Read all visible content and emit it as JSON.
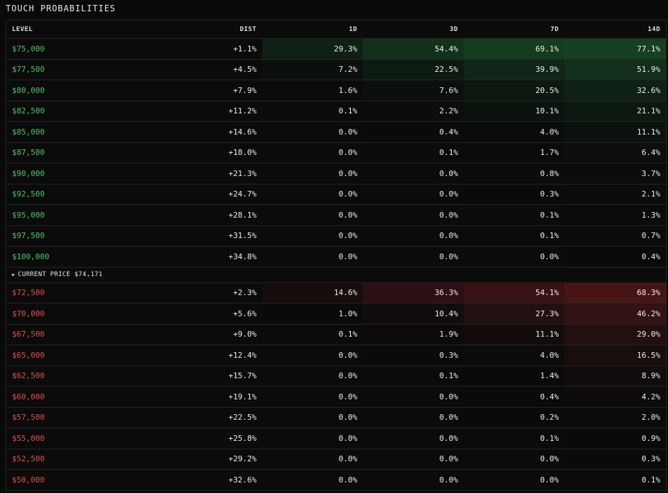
{
  "title": "TOUCH PROBABILITIES",
  "headers": {
    "level": "LEVEL",
    "dist": "DIST",
    "h1": "1D",
    "h3": "3D",
    "h7": "7D",
    "h14": "14D"
  },
  "current_price_label": "CURRENT PRICE $74,171",
  "colors": {
    "up_text": "#4fc767",
    "down_text": "#e0524c",
    "up_heat": "#1a5a2c",
    "down_heat": "#6a1c1e"
  },
  "upper_rows": [
    {
      "level": "$75,000",
      "dist": "+1.1%",
      "d1": "29.3%",
      "d3": "54.4%",
      "d7": "69.1%",
      "d14": "77.1%"
    },
    {
      "level": "$77,500",
      "dist": "+4.5%",
      "d1": "7.2%",
      "d3": "22.5%",
      "d7": "39.9%",
      "d14": "51.9%"
    },
    {
      "level": "$80,000",
      "dist": "+7.9%",
      "d1": "1.6%",
      "d3": "7.6%",
      "d7": "20.5%",
      "d14": "32.6%"
    },
    {
      "level": "$82,500",
      "dist": "+11.2%",
      "d1": "0.1%",
      "d3": "2.2%",
      "d7": "10.1%",
      "d14": "21.1%"
    },
    {
      "level": "$85,000",
      "dist": "+14.6%",
      "d1": "0.0%",
      "d3": "0.4%",
      "d7": "4.0%",
      "d14": "11.1%"
    },
    {
      "level": "$87,500",
      "dist": "+18.0%",
      "d1": "0.0%",
      "d3": "0.1%",
      "d7": "1.7%",
      "d14": "6.4%"
    },
    {
      "level": "$90,000",
      "dist": "+21.3%",
      "d1": "0.0%",
      "d3": "0.0%",
      "d7": "0.8%",
      "d14": "3.7%"
    },
    {
      "level": "$92,500",
      "dist": "+24.7%",
      "d1": "0.0%",
      "d3": "0.0%",
      "d7": "0.3%",
      "d14": "2.1%"
    },
    {
      "level": "$95,000",
      "dist": "+28.1%",
      "d1": "0.0%",
      "d3": "0.0%",
      "d7": "0.1%",
      "d14": "1.3%"
    },
    {
      "level": "$97,500",
      "dist": "+31.5%",
      "d1": "0.0%",
      "d3": "0.0%",
      "d7": "0.1%",
      "d14": "0.7%"
    },
    {
      "level": "$100,000",
      "dist": "+34.8%",
      "d1": "0.0%",
      "d3": "0.0%",
      "d7": "0.0%",
      "d14": "0.4%"
    }
  ],
  "lower_rows": [
    {
      "level": "$72,500",
      "dist": "+2.3%",
      "d1": "14.6%",
      "d3": "36.3%",
      "d7": "54.1%",
      "d14": "68.3%"
    },
    {
      "level": "$70,000",
      "dist": "+5.6%",
      "d1": "1.0%",
      "d3": "10.4%",
      "d7": "27.3%",
      "d14": "46.2%"
    },
    {
      "level": "$67,500",
      "dist": "+9.0%",
      "d1": "0.1%",
      "d3": "1.9%",
      "d7": "11.1%",
      "d14": "29.0%"
    },
    {
      "level": "$65,000",
      "dist": "+12.4%",
      "d1": "0.0%",
      "d3": "0.3%",
      "d7": "4.0%",
      "d14": "16.5%"
    },
    {
      "level": "$62,500",
      "dist": "+15.7%",
      "d1": "0.0%",
      "d3": "0.1%",
      "d7": "1.4%",
      "d14": "8.9%"
    },
    {
      "level": "$60,000",
      "dist": "+19.1%",
      "d1": "0.0%",
      "d3": "0.0%",
      "d7": "0.4%",
      "d14": "4.2%"
    },
    {
      "level": "$57,500",
      "dist": "+22.5%",
      "d1": "0.0%",
      "d3": "0.0%",
      "d7": "0.2%",
      "d14": "2.0%"
    },
    {
      "level": "$55,000",
      "dist": "+25.8%",
      "d1": "0.0%",
      "d3": "0.0%",
      "d7": "0.1%",
      "d14": "0.9%"
    },
    {
      "level": "$52,500",
      "dist": "+29.2%",
      "d1": "0.0%",
      "d3": "0.0%",
      "d7": "0.0%",
      "d14": "0.3%"
    },
    {
      "level": "$50,000",
      "dist": "+32.6%",
      "d1": "0.0%",
      "d3": "0.0%",
      "d7": "0.0%",
      "d14": "0.1%"
    }
  ]
}
